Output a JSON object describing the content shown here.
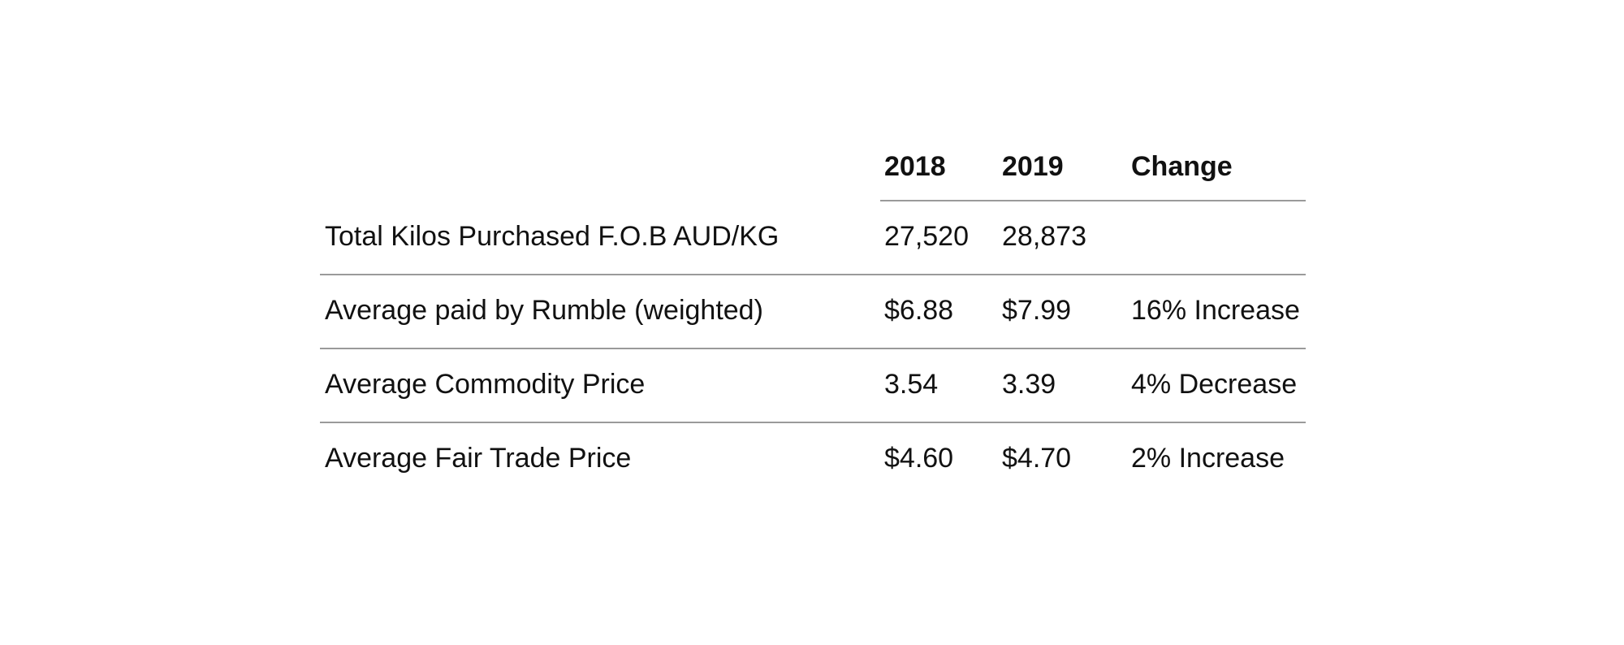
{
  "table": {
    "headers": {
      "label": "",
      "y2018": "2018",
      "y2019": "2019",
      "change": "Change"
    },
    "rows": [
      {
        "label": "Total Kilos Purchased F.O.B AUD/KG",
        "y2018": "27,520",
        "y2019": "28,873",
        "change": ""
      },
      {
        "label": "Average paid by Rumble (weighted)",
        "y2018": "$6.88",
        "y2019": "$7.99",
        "change": "16% Increase"
      },
      {
        "label": "Average Commodity Price",
        "y2018": "3.54",
        "y2019": "3.39",
        "change": "4% Decrease"
      },
      {
        "label": "Average Fair Trade Price",
        "y2018": "$4.60",
        "y2019": "$4.70",
        "change": "2% Increase"
      }
    ]
  },
  "colors": {
    "text": "#111111",
    "rule": "#9a9a9a",
    "background": "#ffffff"
  }
}
